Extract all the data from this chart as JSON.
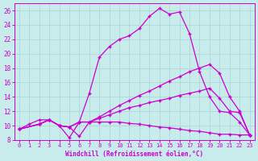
{
  "bg_color": "#c8ecec",
  "line_color": "#cc00cc",
  "xlabel": "Windchill (Refroidissement éolien,°C)",
  "xlim": [
    -0.5,
    23.5
  ],
  "ylim": [
    8,
    27
  ],
  "yticks": [
    8,
    10,
    12,
    14,
    16,
    18,
    20,
    22,
    24,
    26
  ],
  "xticks": [
    0,
    1,
    2,
    3,
    4,
    5,
    6,
    7,
    8,
    9,
    10,
    11,
    12,
    13,
    14,
    15,
    16,
    17,
    18,
    19,
    20,
    21,
    22,
    23
  ],
  "curve1_x": [
    0,
    1,
    2,
    3,
    4,
    5,
    6,
    7,
    8,
    9,
    10,
    11,
    12,
    13,
    14,
    15,
    16,
    17,
    18,
    19,
    20,
    21,
    22,
    23
  ],
  "curve1_y": [
    9.5,
    10.2,
    10.8,
    10.8,
    10.0,
    8.3,
    10.5,
    14.5,
    19.5,
    21.0,
    22.0,
    22.5,
    23.5,
    25.2,
    26.3,
    25.5,
    25.8,
    22.8,
    17.5,
    14.0,
    12.0,
    11.8,
    10.5,
    8.7
  ],
  "curve2_x": [
    0,
    2,
    3,
    4,
    5,
    6,
    7,
    8,
    9,
    10,
    11,
    12,
    13,
    14,
    15,
    16,
    17,
    18,
    19,
    20,
    21,
    22,
    23
  ],
  "curve2_y": [
    9.5,
    10.2,
    10.8,
    10.0,
    9.8,
    10.5,
    10.5,
    11.2,
    12.0,
    12.8,
    13.5,
    14.2,
    14.8,
    15.5,
    16.2,
    16.8,
    17.5,
    18.0,
    18.5,
    17.3,
    14.0,
    12.0,
    8.7
  ],
  "curve3_x": [
    0,
    2,
    3,
    4,
    5,
    6,
    7,
    8,
    9,
    10,
    11,
    12,
    13,
    14,
    15,
    16,
    17,
    18,
    19,
    20,
    21,
    22,
    23
  ],
  "curve3_y": [
    9.5,
    10.2,
    10.8,
    10.0,
    9.8,
    10.5,
    10.5,
    11.0,
    11.5,
    12.0,
    12.5,
    12.8,
    13.2,
    13.5,
    13.8,
    14.2,
    14.5,
    14.8,
    15.2,
    13.8,
    12.0,
    11.8,
    8.7
  ],
  "curve4_x": [
    0,
    2,
    3,
    4,
    5,
    6,
    7,
    8,
    9,
    10,
    11,
    12,
    13,
    14,
    15,
    16,
    17,
    18,
    19,
    20,
    21,
    22,
    23
  ],
  "curve4_y": [
    9.5,
    10.2,
    10.8,
    10.0,
    9.8,
    8.5,
    10.5,
    10.5,
    10.5,
    10.5,
    10.3,
    10.2,
    10.0,
    9.8,
    9.7,
    9.5,
    9.3,
    9.2,
    9.0,
    8.8,
    8.8,
    8.7,
    8.7
  ]
}
